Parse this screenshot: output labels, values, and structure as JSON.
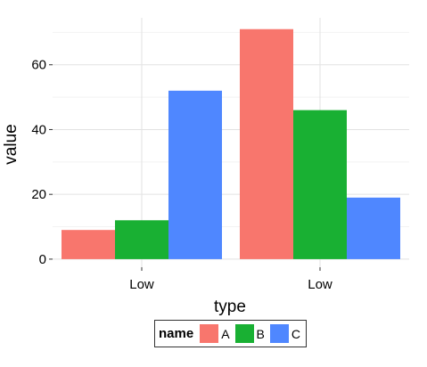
{
  "chart_data": {
    "type": "bar",
    "title": "",
    "xlabel": "type",
    "ylabel": "value",
    "categories": [
      "Low",
      "Low"
    ],
    "yticks": [
      0,
      20,
      40,
      60
    ],
    "ylim": [
      -2.5,
      74.5
    ],
    "grid": true,
    "legend": {
      "title": "name",
      "placement": "bottom"
    },
    "series": [
      {
        "name": "A",
        "color": "#F8766D",
        "values": [
          9,
          71
        ]
      },
      {
        "name": "B",
        "color": "#19B033",
        "values": [
          12,
          46
        ]
      },
      {
        "name": "C",
        "color": "#4F87FF",
        "values": [
          52,
          19
        ]
      }
    ]
  }
}
